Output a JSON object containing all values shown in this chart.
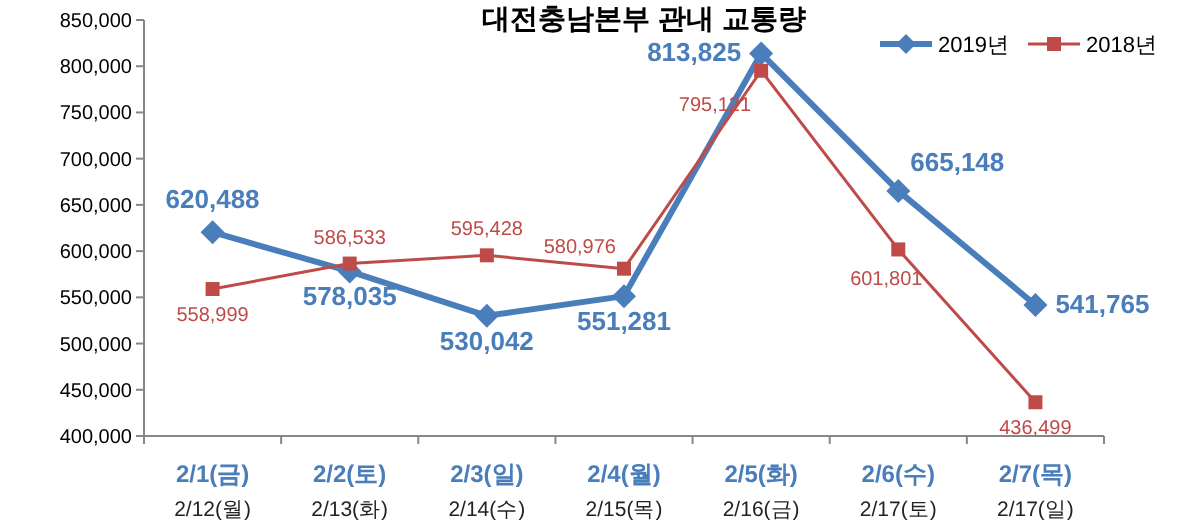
{
  "chart_data": {
    "type": "line",
    "title": "대전충남본부 관내 교통량",
    "categories": [
      "2/1(금)\n2/12(월)",
      "2/2(토)\n2/13(화)",
      "2/3(일)\n2/14(수)",
      "2/4(월)\n2/15(목)",
      "2/5(화)\n2/16(금)",
      "2/6(수)\n2/17(토)",
      "2/7(목)\n2/17(일)"
    ],
    "series": [
      {
        "name": "2019년",
        "color": "#4a7ebb",
        "marker": "diamond",
        "values": [
          620488,
          578035,
          530042,
          551281,
          813825,
          665148,
          541765
        ],
        "value_labels": [
          "620,488",
          "578,035",
          "530,042",
          "551,281",
          "813,825",
          "665,148",
          "541,765"
        ]
      },
      {
        "name": "2018년",
        "color": "#be4b48",
        "marker": "square",
        "values": [
          558999,
          586533,
          595428,
          580976,
          795121,
          601801,
          436499
        ],
        "value_labels": [
          "558,999",
          "586,533",
          "595,428",
          "580,976",
          "795,121",
          "601,801",
          "436,499"
        ]
      }
    ],
    "ylim": [
      400000,
      850000
    ],
    "yticks": [
      {
        "value": 400000,
        "label": "400,000"
      },
      {
        "value": 450000,
        "label": "450,000"
      },
      {
        "value": 500000,
        "label": "500,000"
      },
      {
        "value": 550000,
        "label": "550,000"
      },
      {
        "value": 600000,
        "label": "600,000"
      },
      {
        "value": 650000,
        "label": "650,000"
      },
      {
        "value": 700000,
        "label": "700,000"
      },
      {
        "value": 750000,
        "label": "750,000"
      },
      {
        "value": 800000,
        "label": "800,000"
      },
      {
        "value": 850000,
        "label": "850,000"
      }
    ],
    "legend": "top right",
    "grid": false
  }
}
